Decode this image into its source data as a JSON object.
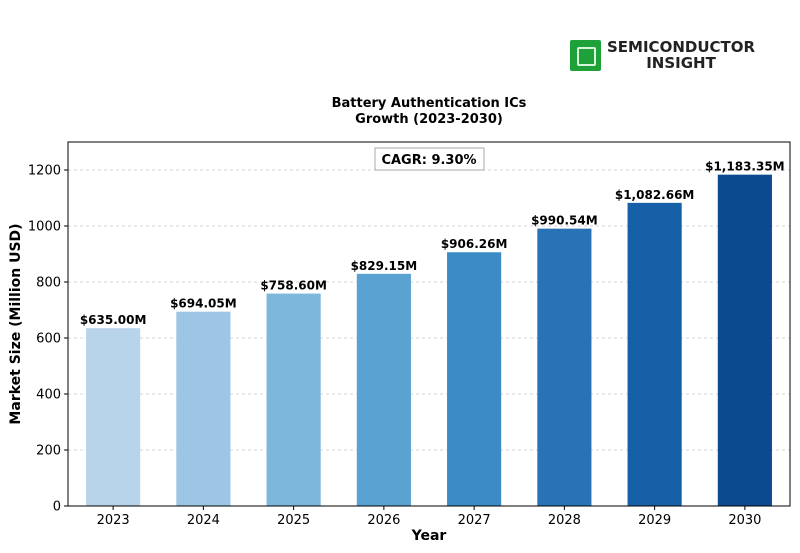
{
  "logo": {
    "line1": "SEMICONDUCTOR",
    "line2": "INSIGHT",
    "icon": "chip-icon",
    "color": "#1fa13a"
  },
  "annotation": {
    "cagr": "CAGR: 9.30%"
  },
  "chart_data": {
    "type": "bar",
    "title": "Battery Authentication ICs\nGrowth (2023-2030)",
    "xlabel": "Year",
    "ylabel": "Market Size (Million USD)",
    "ylim": [
      0,
      1300
    ],
    "yticks": [
      0,
      200,
      400,
      600,
      800,
      1000,
      1200
    ],
    "grid": true,
    "categories": [
      "2023",
      "2024",
      "2025",
      "2026",
      "2027",
      "2028",
      "2029",
      "2030"
    ],
    "values": [
      635.0,
      694.05,
      758.6,
      829.15,
      906.26,
      990.54,
      1082.66,
      1183.35
    ],
    "value_labels": [
      "$635.00M",
      "$694.05M",
      "$758.60M",
      "$829.15M",
      "$906.26M",
      "$990.54M",
      "$1,082.66M",
      "$1,183.35M"
    ],
    "colors": [
      "#b8d4ea",
      "#9cc6e3",
      "#7db8dc",
      "#5aa2d1",
      "#3d8bc4",
      "#2873b6",
      "#1660a8",
      "#0b4a8f"
    ]
  }
}
